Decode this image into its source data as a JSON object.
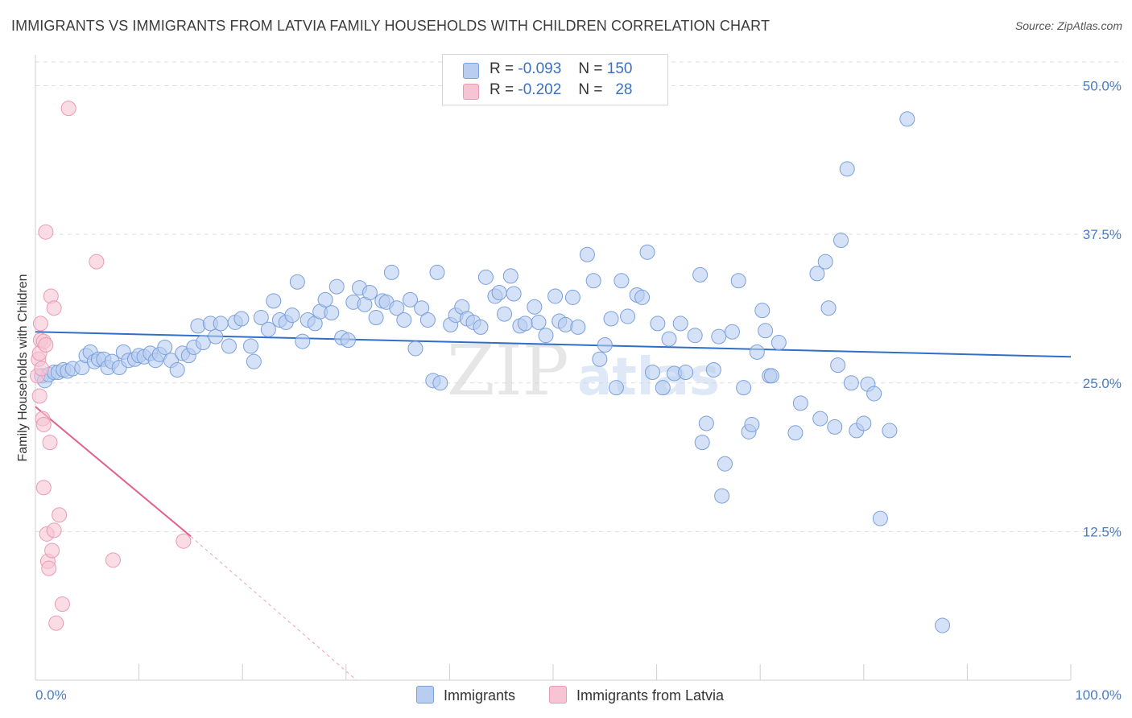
{
  "title": "IMMIGRANTS VS IMMIGRANTS FROM LATVIA FAMILY HOUSEHOLDS WITH CHILDREN CORRELATION CHART",
  "source": "Source: ZipAtlas.com",
  "watermark": {
    "zip": "ZIP",
    "atlas": "atlas"
  },
  "colors": {
    "blue_fill": "#b8cdf0",
    "blue_stroke": "#7aa0dc",
    "blue_line": "#2f6fc7",
    "pink_fill": "#f7c4d4",
    "pink_stroke": "#ea9ab5",
    "pink_line": "#e0608e",
    "grid": "#dddddd",
    "tick_text": "#4a7cc4"
  },
  "legend": {
    "rows": [
      {
        "r_label": "R =",
        "r_value": "-0.093",
        "n_label": "N =",
        "n_value": "150"
      },
      {
        "r_label": "R =",
        "r_value": "-0.202",
        "n_label": "N =",
        "n_value": "28"
      }
    ]
  },
  "bottom_legend": {
    "series1": "Immigrants",
    "series2": "Immigrants from Latvia"
  },
  "chart_data": {
    "type": "scatter",
    "xlabel": "",
    "ylabel": "Family Households with Children",
    "xlim": [
      0,
      100
    ],
    "ylim": [
      0,
      52
    ],
    "x_tick_labels": [
      "0.0%",
      "100.0%"
    ],
    "y_ticks": [
      {
        "value": 12.5,
        "label": "12.5%"
      },
      {
        "value": 25.0,
        "label": "25.0%"
      },
      {
        "value": 37.5,
        "label": "37.5%"
      },
      {
        "value": 50.0,
        "label": "50.0%"
      }
    ],
    "series": [
      {
        "name": "Immigrants",
        "color": "#b8cdf0",
        "trend": {
          "x": [
            0,
            100
          ],
          "y": [
            29.3,
            27.2
          ],
          "dashed_to": null
        },
        "points": [
          [
            0.6,
            25.6
          ],
          [
            0.9,
            25.2
          ],
          [
            1.3,
            25.7
          ],
          [
            1.8,
            25.9
          ],
          [
            2.2,
            25.9
          ],
          [
            2.7,
            26.1
          ],
          [
            3.1,
            26.0
          ],
          [
            3.6,
            26.2
          ],
          [
            4.5,
            26.3
          ],
          [
            4.9,
            27.3
          ],
          [
            5.3,
            27.6
          ],
          [
            5.7,
            26.8
          ],
          [
            6.1,
            27.0
          ],
          [
            6.6,
            27.0
          ],
          [
            7.0,
            26.3
          ],
          [
            7.4,
            26.8
          ],
          [
            8.1,
            26.3
          ],
          [
            8.5,
            27.6
          ],
          [
            9.0,
            26.9
          ],
          [
            9.6,
            27.0
          ],
          [
            10.0,
            27.3
          ],
          [
            10.5,
            27.2
          ],
          [
            11.1,
            27.5
          ],
          [
            11.6,
            26.9
          ],
          [
            12.0,
            27.4
          ],
          [
            12.5,
            28.0
          ],
          [
            13.1,
            26.9
          ],
          [
            13.7,
            26.1
          ],
          [
            14.2,
            27.5
          ],
          [
            14.8,
            27.3
          ],
          [
            15.3,
            28.0
          ],
          [
            15.7,
            29.8
          ],
          [
            16.2,
            28.4
          ],
          [
            16.9,
            30.0
          ],
          [
            17.4,
            28.9
          ],
          [
            17.9,
            30.0
          ],
          [
            18.7,
            28.1
          ],
          [
            19.3,
            30.1
          ],
          [
            19.9,
            30.4
          ],
          [
            20.8,
            28.1
          ],
          [
            21.1,
            26.8
          ],
          [
            21.8,
            30.5
          ],
          [
            22.5,
            29.5
          ],
          [
            23.0,
            31.9
          ],
          [
            23.6,
            30.3
          ],
          [
            24.2,
            30.1
          ],
          [
            24.8,
            30.7
          ],
          [
            25.3,
            33.5
          ],
          [
            25.8,
            28.5
          ],
          [
            26.3,
            30.3
          ],
          [
            27.0,
            30.0
          ],
          [
            27.5,
            31.0
          ],
          [
            28.0,
            32.0
          ],
          [
            28.6,
            30.9
          ],
          [
            29.1,
            33.1
          ],
          [
            29.6,
            28.8
          ],
          [
            30.2,
            28.6
          ],
          [
            30.7,
            31.8
          ],
          [
            31.3,
            33.0
          ],
          [
            31.8,
            31.6
          ],
          [
            32.3,
            32.6
          ],
          [
            32.9,
            30.5
          ],
          [
            33.5,
            31.9
          ],
          [
            33.9,
            31.8
          ],
          [
            34.4,
            34.3
          ],
          [
            34.9,
            31.3
          ],
          [
            35.6,
            30.3
          ],
          [
            36.2,
            32.0
          ],
          [
            36.7,
            27.9
          ],
          [
            37.3,
            31.3
          ],
          [
            37.9,
            30.3
          ],
          [
            38.8,
            34.3
          ],
          [
            38.4,
            25.2
          ],
          [
            39.1,
            25.0
          ],
          [
            40.1,
            29.9
          ],
          [
            40.6,
            30.7
          ],
          [
            41.2,
            31.4
          ],
          [
            41.7,
            30.4
          ],
          [
            42.3,
            30.1
          ],
          [
            43.0,
            29.7
          ],
          [
            43.5,
            33.9
          ],
          [
            44.4,
            32.3
          ],
          [
            44.8,
            32.6
          ],
          [
            45.3,
            30.8
          ],
          [
            45.9,
            34.0
          ],
          [
            46.2,
            32.5
          ],
          [
            46.8,
            29.8
          ],
          [
            47.3,
            30.0
          ],
          [
            48.2,
            31.4
          ],
          [
            48.6,
            30.1
          ],
          [
            49.3,
            29.0
          ],
          [
            50.2,
            32.3
          ],
          [
            50.6,
            30.2
          ],
          [
            51.2,
            29.9
          ],
          [
            51.9,
            32.2
          ],
          [
            52.4,
            29.7
          ],
          [
            53.3,
            35.8
          ],
          [
            53.9,
            33.6
          ],
          [
            54.5,
            27.0
          ],
          [
            55.0,
            28.2
          ],
          [
            55.6,
            30.4
          ],
          [
            56.1,
            24.6
          ],
          [
            56.6,
            33.6
          ],
          [
            57.2,
            30.6
          ],
          [
            58.1,
            32.4
          ],
          [
            58.6,
            32.2
          ],
          [
            59.1,
            36.0
          ],
          [
            59.6,
            25.9
          ],
          [
            60.1,
            30.0
          ],
          [
            60.6,
            24.6
          ],
          [
            61.2,
            28.7
          ],
          [
            61.7,
            25.8
          ],
          [
            62.3,
            30.0
          ],
          [
            62.8,
            25.9
          ],
          [
            63.7,
            29.0
          ],
          [
            64.2,
            34.1
          ],
          [
            64.8,
            21.6
          ],
          [
            64.4,
            20.0
          ],
          [
            65.5,
            26.1
          ],
          [
            66.0,
            28.9
          ],
          [
            66.3,
            15.5
          ],
          [
            66.6,
            18.2
          ],
          [
            67.3,
            29.3
          ],
          [
            67.9,
            33.6
          ],
          [
            68.4,
            24.6
          ],
          [
            68.9,
            20.9
          ],
          [
            69.2,
            21.5
          ],
          [
            69.7,
            27.6
          ],
          [
            70.2,
            31.1
          ],
          [
            70.5,
            29.4
          ],
          [
            70.9,
            25.6
          ],
          [
            71.1,
            25.6
          ],
          [
            71.8,
            28.4
          ],
          [
            73.4,
            20.8
          ],
          [
            73.9,
            23.3
          ],
          [
            75.5,
            34.2
          ],
          [
            75.8,
            22.0
          ],
          [
            76.3,
            35.2
          ],
          [
            76.6,
            31.3
          ],
          [
            77.2,
            21.3
          ],
          [
            77.5,
            26.5
          ],
          [
            77.8,
            37.0
          ],
          [
            78.4,
            43.0
          ],
          [
            78.8,
            25.0
          ],
          [
            79.3,
            21.0
          ],
          [
            80.0,
            21.6
          ],
          [
            80.4,
            24.9
          ],
          [
            81.0,
            24.1
          ],
          [
            81.6,
            13.6
          ],
          [
            82.5,
            21.0
          ],
          [
            84.2,
            47.2
          ],
          [
            87.6,
            4.6
          ]
        ]
      },
      {
        "name": "Immigrants from Latvia",
        "color": "#f7c4d4",
        "trend": {
          "x": [
            0,
            15
          ],
          "y": [
            23.0,
            12.1
          ],
          "dashed_to": [
            31,
            0
          ]
        },
        "points": [
          [
            0.2,
            25.6
          ],
          [
            0.3,
            27.0
          ],
          [
            0.4,
            27.5
          ],
          [
            0.6,
            26.2
          ],
          [
            0.4,
            23.9
          ],
          [
            0.5,
            30.0
          ],
          [
            0.5,
            28.6
          ],
          [
            0.8,
            28.5
          ],
          [
            1.0,
            28.2
          ],
          [
            0.7,
            22.0
          ],
          [
            0.8,
            21.5
          ],
          [
            0.8,
            16.2
          ],
          [
            1.1,
            12.3
          ],
          [
            1.2,
            10.0
          ],
          [
            1.3,
            9.4
          ],
          [
            1.4,
            20.0
          ],
          [
            1.5,
            32.3
          ],
          [
            1.6,
            10.9
          ],
          [
            1.8,
            12.6
          ],
          [
            1.8,
            31.3
          ],
          [
            2.0,
            4.8
          ],
          [
            2.3,
            13.9
          ],
          [
            2.6,
            6.4
          ],
          [
            3.2,
            48.1
          ],
          [
            1.0,
            37.7
          ],
          [
            5.9,
            35.2
          ],
          [
            7.5,
            10.1
          ],
          [
            14.3,
            11.7
          ]
        ]
      }
    ]
  }
}
